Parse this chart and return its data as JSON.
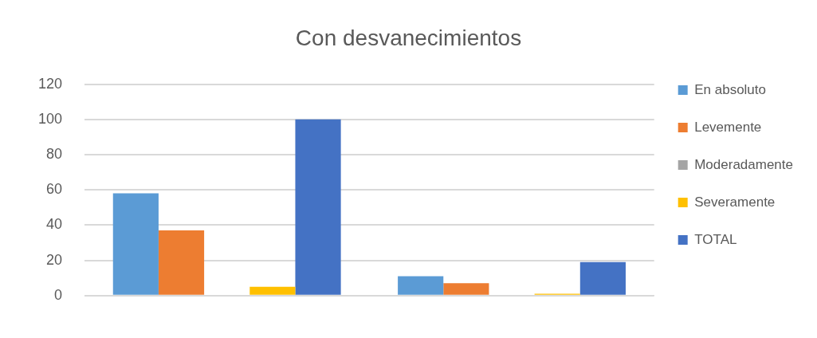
{
  "chart_data": {
    "type": "bar",
    "title": "Con desvanecimientos",
    "categories": [
      null,
      null
    ],
    "series": [
      {
        "name": "En absoluto",
        "color": "#5b9bd5",
        "values": [
          58,
          11
        ]
      },
      {
        "name": "Levemente",
        "color": "#ed7d31",
        "values": [
          37,
          7
        ]
      },
      {
        "name": "Moderadamente",
        "color": "#a5a5a5",
        "values": [
          0,
          0
        ]
      },
      {
        "name": "Severamente",
        "color": "#ffc000",
        "values": [
          5,
          1
        ]
      },
      {
        "name": "TOTAL",
        "color": "#4472c4",
        "values": [
          100,
          19
        ]
      }
    ],
    "ylim": [
      0,
      120
    ],
    "yticks": [
      0,
      20,
      40,
      60,
      80,
      100,
      120
    ],
    "grid": "y",
    "legend": "right"
  }
}
